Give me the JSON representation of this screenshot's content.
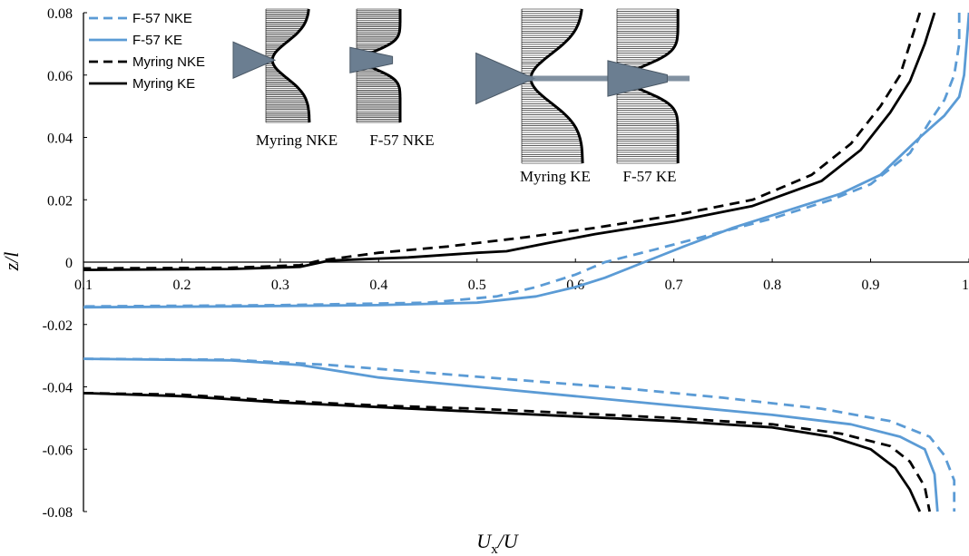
{
  "colors": {
    "blue": "#5b9bd5",
    "black": "#000000"
  },
  "chart_data": {
    "type": "line",
    "xlabel": "U",
    "xlabel_sub": "x",
    "xlabel_tail": "/U",
    "ylabel": "z/l",
    "xlim": [
      0.1,
      1.0
    ],
    "ylim": [
      -0.08,
      0.08
    ],
    "x_ticks": [
      "0.1",
      "0.2",
      "0.3",
      "0.4",
      "0.5",
      "0.6",
      "0.7",
      "0.8",
      "0.9",
      "1"
    ],
    "y_ticks": [
      "0.08",
      "0.06",
      "0.04",
      "0.02",
      "0",
      "-0.02",
      "-0.04",
      "-0.06",
      "-0.08"
    ],
    "legend_position": "top-left",
    "grid": false,
    "series": [
      {
        "name": "F-57 NKE",
        "color": "#5b9bd5",
        "dash": true,
        "upper": [
          [
            0.99,
            0.08
          ],
          [
            0.99,
            0.07
          ],
          [
            0.985,
            0.06
          ],
          [
            0.975,
            0.052
          ],
          [
            0.96,
            0.045
          ],
          [
            0.94,
            0.035
          ],
          [
            0.9,
            0.025
          ],
          [
            0.86,
            0.02
          ],
          [
            0.8,
            0.014
          ],
          [
            0.74,
            0.009
          ],
          [
            0.68,
            0.004
          ],
          [
            0.63,
            0.0
          ],
          [
            0.6,
            -0.004
          ],
          [
            0.56,
            -0.008
          ],
          [
            0.52,
            -0.011
          ],
          [
            0.45,
            -0.013
          ],
          [
            0.3,
            -0.0138
          ],
          [
            0.1,
            -0.0142
          ]
        ],
        "lower": [
          [
            0.1,
            -0.031
          ],
          [
            0.25,
            -0.0313
          ],
          [
            0.35,
            -0.033
          ],
          [
            0.45,
            -0.0355
          ],
          [
            0.55,
            -0.038
          ],
          [
            0.65,
            -0.0405
          ],
          [
            0.75,
            -0.0435
          ],
          [
            0.85,
            -0.047
          ],
          [
            0.92,
            -0.051
          ],
          [
            0.96,
            -0.056
          ],
          [
            0.975,
            -0.062
          ],
          [
            0.985,
            -0.07
          ],
          [
            0.985,
            -0.08
          ]
        ]
      },
      {
        "name": "F-57 KE",
        "color": "#5b9bd5",
        "dash": false,
        "upper": [
          [
            1.0,
            0.08
          ],
          [
            0.995,
            0.06
          ],
          [
            0.99,
            0.053
          ],
          [
            0.975,
            0.047
          ],
          [
            0.95,
            0.04
          ],
          [
            0.91,
            0.028
          ],
          [
            0.87,
            0.022
          ],
          [
            0.82,
            0.017
          ],
          [
            0.76,
            0.011
          ],
          [
            0.71,
            0.005
          ],
          [
            0.67,
            0.0
          ],
          [
            0.63,
            -0.005
          ],
          [
            0.6,
            -0.008
          ],
          [
            0.56,
            -0.011
          ],
          [
            0.5,
            -0.013
          ],
          [
            0.4,
            -0.0138
          ],
          [
            0.25,
            -0.0142
          ],
          [
            0.1,
            -0.0145
          ]
        ],
        "lower": [
          [
            0.1,
            -0.031
          ],
          [
            0.25,
            -0.0315
          ],
          [
            0.32,
            -0.033
          ],
          [
            0.4,
            -0.037
          ],
          [
            0.5,
            -0.04
          ],
          [
            0.6,
            -0.043
          ],
          [
            0.7,
            -0.046
          ],
          [
            0.8,
            -0.049
          ],
          [
            0.88,
            -0.052
          ],
          [
            0.93,
            -0.056
          ],
          [
            0.955,
            -0.06
          ],
          [
            0.965,
            -0.068
          ],
          [
            0.968,
            -0.08
          ]
        ]
      },
      {
        "name": "Myring NKE",
        "color": "#000000",
        "dash": true,
        "upper": [
          [
            0.95,
            0.08
          ],
          [
            0.94,
            0.07
          ],
          [
            0.93,
            0.06
          ],
          [
            0.91,
            0.05
          ],
          [
            0.88,
            0.038
          ],
          [
            0.84,
            0.028
          ],
          [
            0.78,
            0.02
          ],
          [
            0.7,
            0.015
          ],
          [
            0.62,
            0.011
          ],
          [
            0.55,
            0.008
          ],
          [
            0.47,
            0.005
          ],
          [
            0.4,
            0.003
          ],
          [
            0.34,
            0.0005
          ],
          [
            0.32,
            -0.001
          ],
          [
            0.25,
            -0.0018
          ],
          [
            0.1,
            -0.002
          ]
        ],
        "lower": [
          [
            0.1,
            -0.042
          ],
          [
            0.2,
            -0.0425
          ],
          [
            0.3,
            -0.0445
          ],
          [
            0.4,
            -0.046
          ],
          [
            0.5,
            -0.047
          ],
          [
            0.6,
            -0.0485
          ],
          [
            0.7,
            -0.05
          ],
          [
            0.8,
            -0.052
          ],
          [
            0.87,
            -0.055
          ],
          [
            0.92,
            -0.059
          ],
          [
            0.94,
            -0.064
          ],
          [
            0.955,
            -0.072
          ],
          [
            0.96,
            -0.08
          ]
        ]
      },
      {
        "name": "Myring KE",
        "color": "#000000",
        "dash": false,
        "upper": [
          [
            0.965,
            0.08
          ],
          [
            0.955,
            0.07
          ],
          [
            0.94,
            0.058
          ],
          [
            0.92,
            0.048
          ],
          [
            0.89,
            0.036
          ],
          [
            0.85,
            0.026
          ],
          [
            0.78,
            0.018
          ],
          [
            0.7,
            0.013
          ],
          [
            0.62,
            0.009
          ],
          [
            0.57,
            0.006
          ],
          [
            0.53,
            0.0035
          ],
          [
            0.5,
            0.003
          ],
          [
            0.43,
            0.0015
          ],
          [
            0.35,
            0.0005
          ],
          [
            0.32,
            -0.0015
          ],
          [
            0.25,
            -0.0022
          ],
          [
            0.1,
            -0.0025
          ]
        ],
        "lower": [
          [
            0.1,
            -0.042
          ],
          [
            0.2,
            -0.043
          ],
          [
            0.3,
            -0.045
          ],
          [
            0.4,
            -0.0465
          ],
          [
            0.5,
            -0.048
          ],
          [
            0.6,
            -0.0495
          ],
          [
            0.7,
            -0.051
          ],
          [
            0.8,
            -0.053
          ],
          [
            0.86,
            -0.056
          ],
          [
            0.9,
            -0.06
          ],
          [
            0.925,
            -0.066
          ],
          [
            0.94,
            -0.073
          ],
          [
            0.95,
            -0.08
          ]
        ]
      }
    ],
    "insets": [
      {
        "label": "Myring NKE",
        "kind": "myring",
        "scale": 1
      },
      {
        "label": "F-57 NKE",
        "kind": "f57",
        "scale": 1
      },
      {
        "label": "Myring KE",
        "kind": "myring",
        "scale": 1.4
      },
      {
        "label": "F-57 KE",
        "kind": "f57",
        "scale": 1.4
      }
    ]
  }
}
